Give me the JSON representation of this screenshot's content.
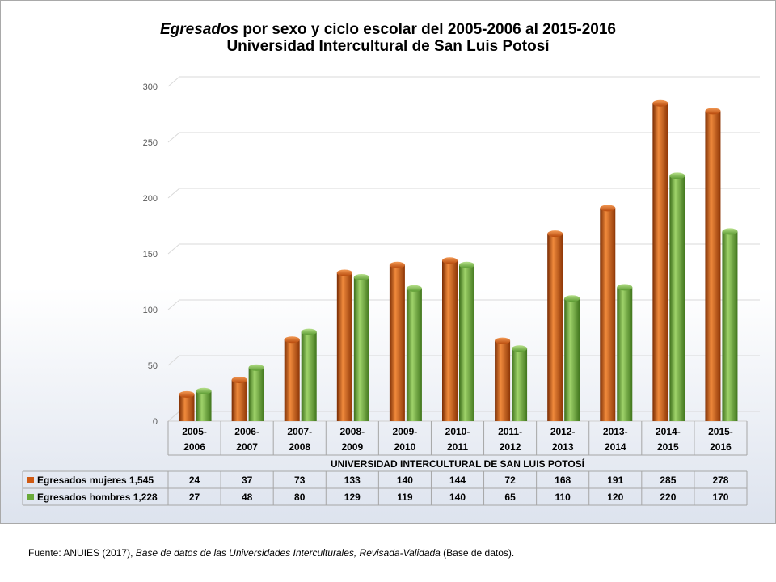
{
  "chart_data": {
    "type": "bar",
    "title_emphasis": "Egresados",
    "title_rest": " por sexo y ciclo escolar del  2005-2006 al 2015-2016",
    "subtitle": "Universidad Intercultural de San Luis Potosí",
    "categories": [
      "2005-2006",
      "2006-2007",
      "2007-2008",
      "2008-2009",
      "2009-2010",
      "2010-2011",
      "2011-2012",
      "2012-2013",
      "2013-2014",
      "2014-2015",
      "2015-2016"
    ],
    "category_lines": [
      [
        "2005-",
        "2006"
      ],
      [
        "2006-",
        "2007"
      ],
      [
        "2007-",
        "2008"
      ],
      [
        "2008-",
        "2009"
      ],
      [
        "2009-",
        "2010"
      ],
      [
        "2010-",
        "2011"
      ],
      [
        "2011-",
        "2012"
      ],
      [
        "2012-",
        "2013"
      ],
      [
        "2013-",
        "2014"
      ],
      [
        "2014-",
        "2015"
      ],
      [
        "2015-",
        "2016"
      ]
    ],
    "xlabel": "UNIVERSIDAD INTERCULTURAL DE SAN LUIS POTOSÍ",
    "ylim": [
      0,
      300
    ],
    "yticks": [
      0,
      50,
      100,
      150,
      200,
      250,
      300
    ],
    "grid": true,
    "series": [
      {
        "name": "Egresados mujeres 1,545",
        "color": "#d05a12",
        "values": [
          24,
          37,
          73,
          133,
          140,
          144,
          72,
          168,
          191,
          285,
          278
        ]
      },
      {
        "name": "Egresados hombres 1,228",
        "color": "#6aaa3a",
        "values": [
          27,
          48,
          80,
          129,
          119,
          140,
          65,
          110,
          120,
          220,
          170
        ]
      }
    ]
  },
  "source": {
    "prefix": "Fuente: ANUIES (2017), ",
    "italic": "Base de datos de las Universidades  Interculturales, Revisada-Validada",
    "suffix": "  (Base de datos)."
  }
}
